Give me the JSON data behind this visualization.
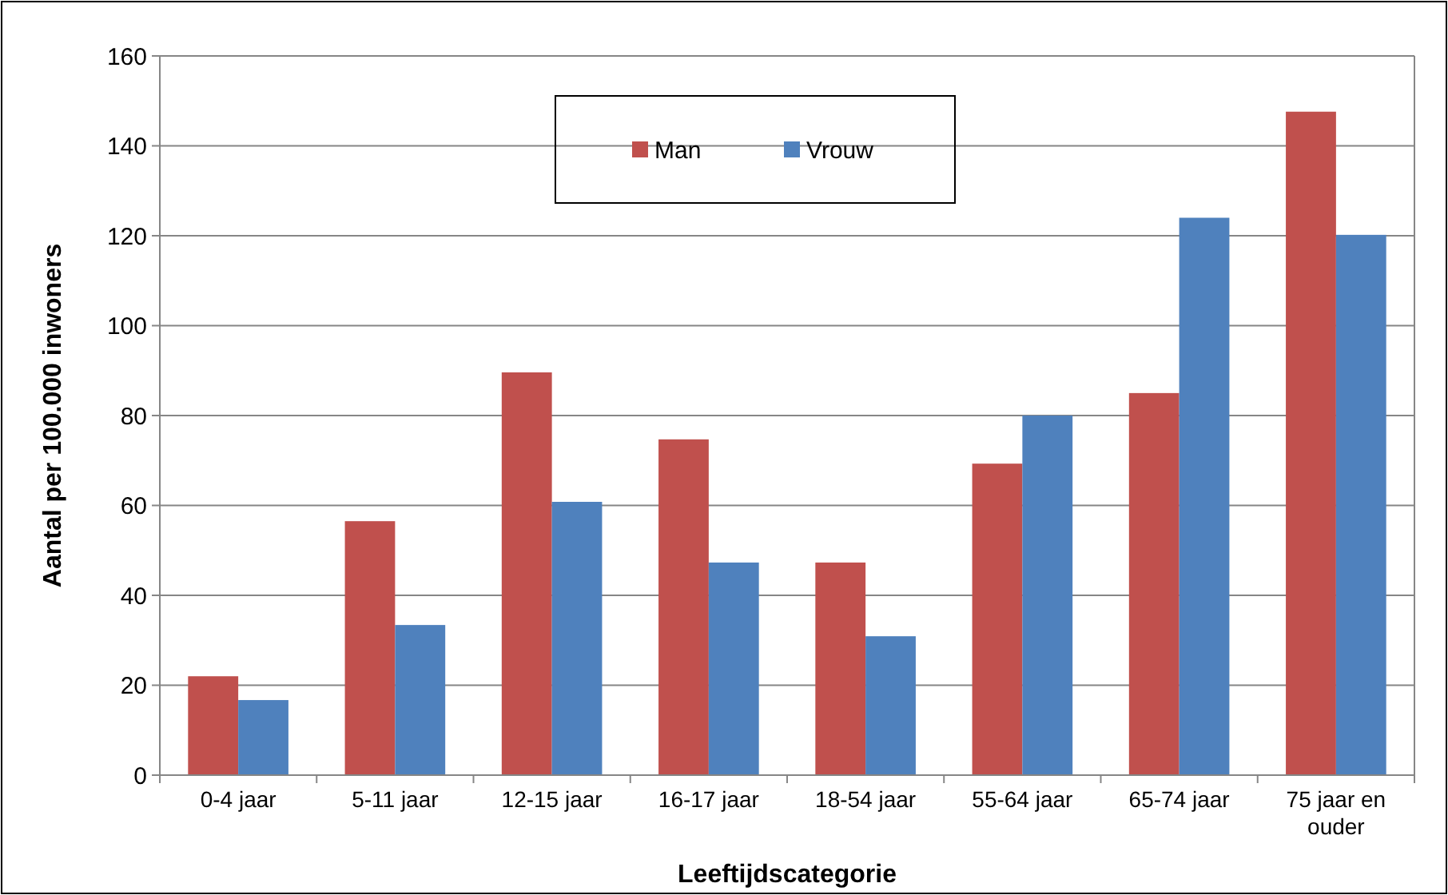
{
  "chart_data": {
    "type": "bar",
    "xlabel": "Leeftijdscategorie",
    "ylabel": "Aantal per 100.000 inwoners",
    "categories": [
      "0-4 jaar",
      "5-11 jaar",
      "12-15 jaar",
      "16-17 jaar",
      "18-54 jaar",
      "55-64 jaar",
      "65-74 jaar",
      "75 jaar en ouder"
    ],
    "series": [
      {
        "name": "Man",
        "color": "#c0504d",
        "values": [
          22,
          56.5,
          89.6,
          74.7,
          47.3,
          69.3,
          85,
          147.6
        ]
      },
      {
        "name": "Vrouw",
        "color": "#4f81bd",
        "values": [
          16.7,
          33.4,
          60.8,
          47.3,
          30.9,
          80,
          124,
          120.2
        ]
      }
    ],
    "ylim": [
      0,
      160
    ],
    "yticks": [
      0,
      20,
      40,
      60,
      80,
      100,
      120,
      140,
      160
    ],
    "grid": "y",
    "legend": "top"
  }
}
